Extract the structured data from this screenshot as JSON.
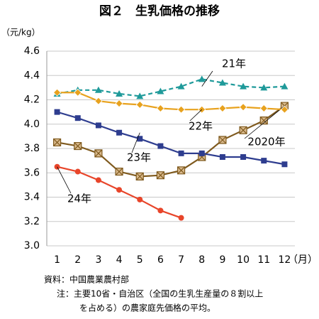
{
  "chart_data": {
    "type": "line",
    "title": "図２　生乳価格の推移",
    "y_unit": "（元/kg）",
    "x_unit": "（月）",
    "categories": [
      "1",
      "2",
      "3",
      "4",
      "5",
      "6",
      "7",
      "8",
      "9",
      "10",
      "11",
      "12"
    ],
    "series": [
      {
        "name": "2020年",
        "color": "#7f5a1e",
        "marker": "xsquare",
        "line_style": "solid",
        "values": [
          3.85,
          3.82,
          3.76,
          3.61,
          3.57,
          3.58,
          3.62,
          3.73,
          3.87,
          3.95,
          4.03,
          4.15
        ]
      },
      {
        "name": "21年",
        "color": "#1f9a9a",
        "marker": "triangle",
        "line_style": "dashed",
        "values": [
          4.25,
          4.28,
          4.28,
          4.25,
          4.23,
          4.27,
          4.31,
          4.37,
          4.34,
          4.31,
          4.3,
          4.31
        ]
      },
      {
        "name": "22年",
        "color": "#e8a21e",
        "marker": "diamond",
        "line_style": "solid",
        "values": [
          4.26,
          4.26,
          4.19,
          4.17,
          4.16,
          4.13,
          4.12,
          4.12,
          4.13,
          4.14,
          4.13,
          4.12
        ]
      },
      {
        "name": "23年",
        "color": "#2e3d8f",
        "marker": "square",
        "line_style": "solid",
        "values": [
          4.1,
          4.05,
          3.99,
          3.93,
          3.88,
          3.82,
          3.76,
          3.76,
          3.73,
          3.73,
          3.7,
          3.67
        ]
      },
      {
        "name": "24年",
        "color": "#e8452a",
        "marker": "circle",
        "line_style": "solid",
        "values": [
          3.65,
          3.61,
          3.54,
          3.46,
          3.38,
          3.29,
          3.23,
          null,
          null,
          null,
          null,
          null
        ]
      }
    ],
    "ylim": [
      3.0,
      4.6
    ],
    "yticks": [
      {
        "value": 3.0,
        "label": "3.0"
      },
      3.2,
      3.4,
      3.6,
      3.8,
      {
        "value": 4.0,
        "label": "4.0"
      },
      4.2,
      4.4,
      4.6
    ],
    "grid": true,
    "source": "資料：中国農業農村部",
    "notes": [
      "注：主要10省・自治区（全国の生乳生産量の８割以上",
      "を占める）の農家庭先価格の平均。"
    ]
  }
}
